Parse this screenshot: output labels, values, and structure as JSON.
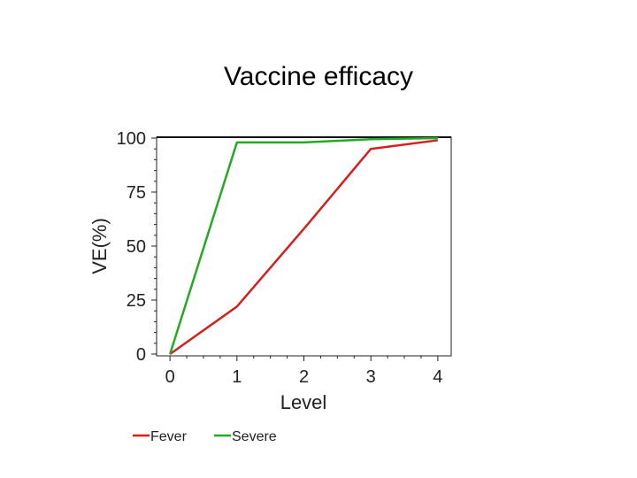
{
  "slide": {
    "title": "Vaccine efficacy"
  },
  "chart_data": {
    "type": "line",
    "title": "",
    "xlabel": "Level",
    "ylabel": "VE(%)",
    "x": [
      0,
      1,
      2,
      3,
      4
    ],
    "xlim": [
      -0.2,
      4.2
    ],
    "ylim": [
      0,
      100
    ],
    "xticks": [
      "0",
      "1",
      "2",
      "3",
      "4"
    ],
    "yticks": [
      "0",
      "25",
      "50",
      "75",
      "100"
    ],
    "grid": false,
    "legend_position": "bottom",
    "series": [
      {
        "name": "Fever",
        "color": "#d42020",
        "values": [
          0,
          22,
          58,
          95,
          99
        ]
      },
      {
        "name": "Severe",
        "color": "#22aa22",
        "values": [
          0,
          98,
          98,
          99.5,
          100
        ]
      }
    ]
  }
}
